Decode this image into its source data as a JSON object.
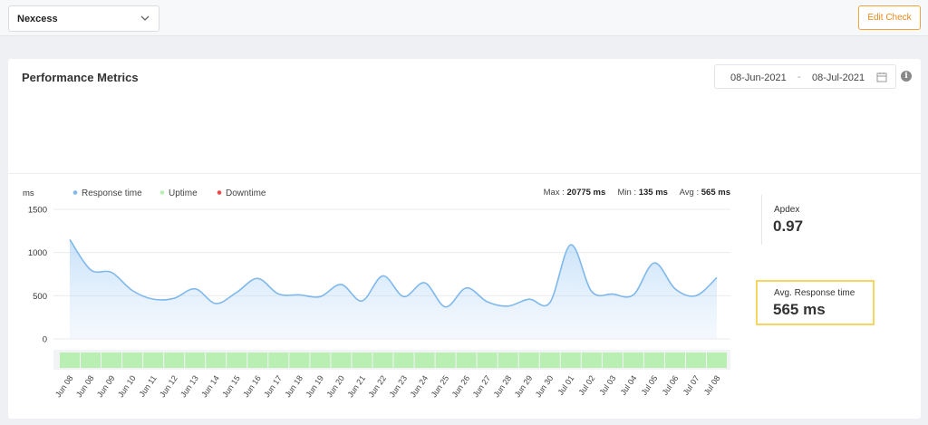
{
  "topbar": {
    "monitor_name": "Nexcess",
    "edit_label": "Edit Check"
  },
  "panel": {
    "title": "Performance Metrics",
    "date_start": "08-Jun-2021",
    "date_separator": "-",
    "date_end": "08-Jul-2021",
    "info_glyph": "i"
  },
  "stats": {
    "max_label": "Max :",
    "max_value": "20775 ms",
    "min_label": "Min :",
    "min_value": "135 ms",
    "avg_label": "Avg :",
    "avg_value": "565 ms"
  },
  "apdex": {
    "label": "Apdex",
    "value": "0.97"
  },
  "avg_response": {
    "label": "Avg. Response time",
    "value": "565 ms"
  },
  "colors": {
    "response": "#7fb8ec",
    "uptime": "#b9efb3",
    "downtime": "#ee4545",
    "accent": "#f2a33a",
    "highlight": "#f6d660"
  },
  "chart_data": {
    "type": "area",
    "ylabel": "ms",
    "ylim": [
      0,
      1500
    ],
    "yticks": [
      0,
      500,
      1000,
      1500
    ],
    "grid": true,
    "legend": [
      {
        "name": "Response time",
        "color": "#7fb8ec"
      },
      {
        "name": "Uptime",
        "color": "#b9efb3"
      },
      {
        "name": "Downtime",
        "color": "#ee4545"
      }
    ],
    "categories": [
      "Jun 08",
      "Jun 08",
      "Jun 09",
      "Jun 10",
      "Jun 11",
      "Jun 12",
      "Jun 13",
      "Jun 14",
      "Jun 15",
      "Jun 16",
      "Jun 17",
      "Jun 18",
      "Jun 19",
      "Jun 20",
      "Jun 21",
      "Jun 22",
      "Jun 23",
      "Jun 24",
      "Jun 25",
      "Jun 26",
      "Jun 27",
      "Jun 28",
      "Jun 29",
      "Jun 30",
      "Jul 01",
      "Jul 02",
      "Jul 03",
      "Jul 04",
      "Jul 05",
      "Jul 06",
      "Jul 07",
      "Jul 08"
    ],
    "series": [
      {
        "name": "Response time",
        "values": [
          1150,
          800,
          770,
          560,
          460,
          470,
          580,
          410,
          540,
          700,
          520,
          510,
          490,
          630,
          440,
          730,
          490,
          650,
          370,
          590,
          430,
          380,
          460,
          420,
          1090,
          550,
          520,
          510,
          880,
          580,
          500,
          710
        ]
      },
      {
        "name": "Uptime",
        "values": [
          1,
          1,
          1,
          1,
          1,
          1,
          1,
          1,
          1,
          1,
          1,
          1,
          1,
          1,
          1,
          1,
          1,
          1,
          1,
          1,
          1,
          1,
          1,
          1,
          1,
          1,
          1,
          1,
          1,
          1,
          1,
          1
        ]
      }
    ]
  }
}
